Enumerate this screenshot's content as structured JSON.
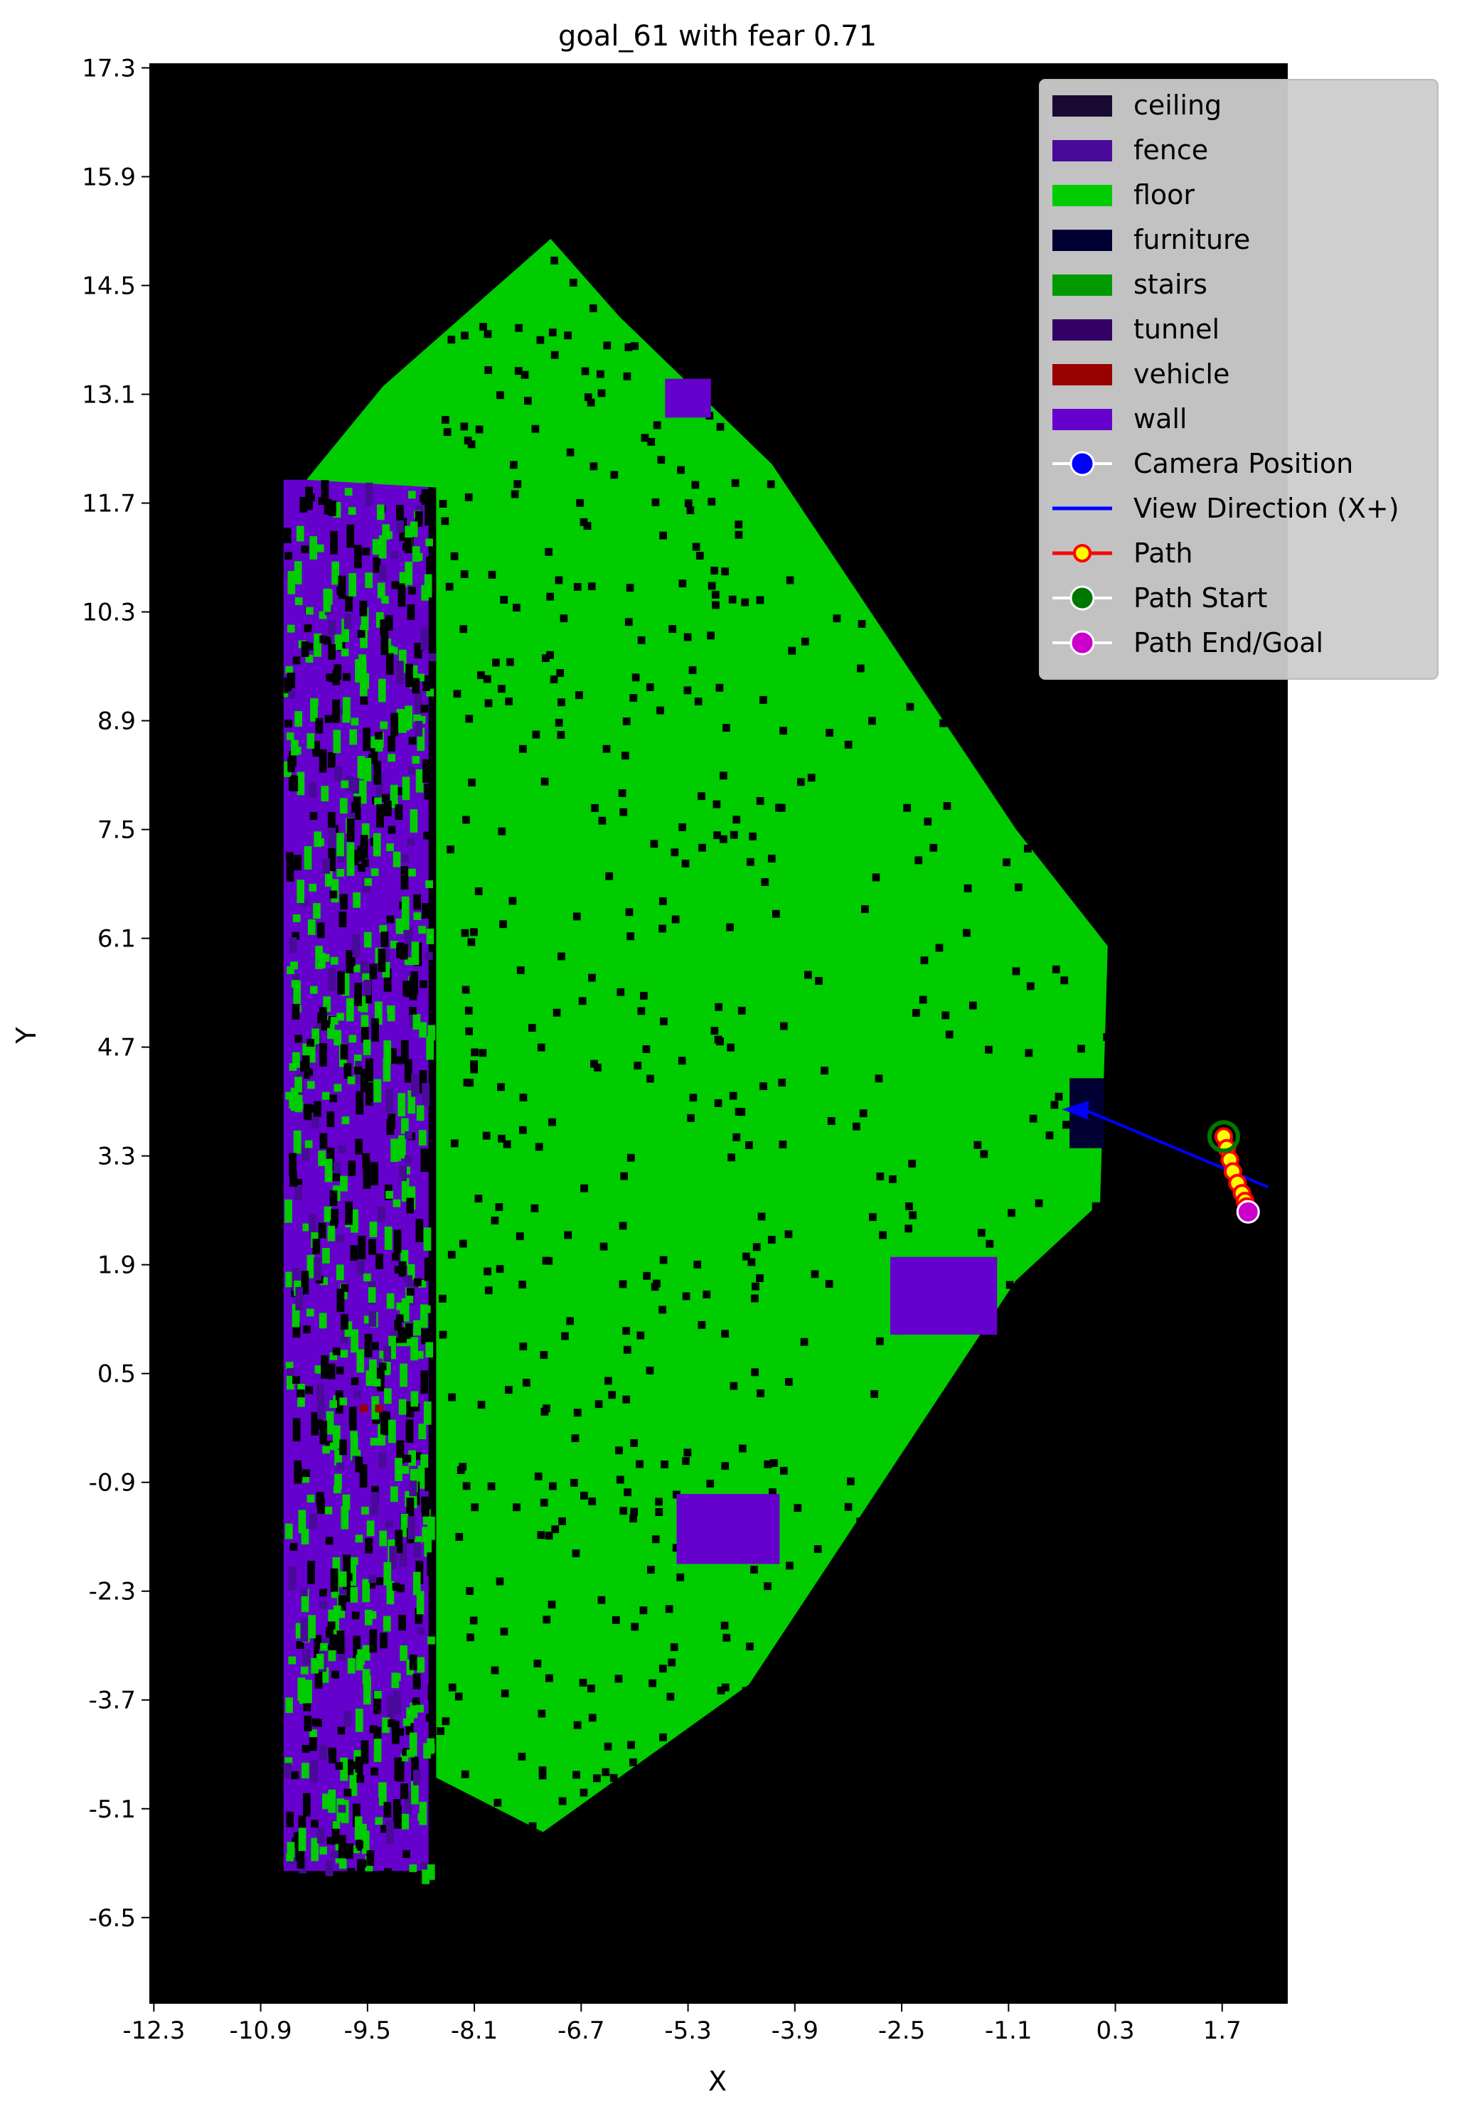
{
  "title": "goal_61 with fear 0.71",
  "chart_data": {
    "type": "heatmap",
    "title": "goal_61 with fear 0.71",
    "xlabel": "X",
    "ylabel": "Y",
    "xlim": [
      -12.35,
      2.55
    ],
    "ylim": [
      -7.6,
      17.35
    ],
    "x_ticks": [
      "-12.3",
      "-10.9",
      "-9.5",
      "-8.1",
      "-6.7",
      "-5.3",
      "-3.9",
      "-2.5",
      "-1.1",
      "0.3",
      "1.7"
    ],
    "y_ticks": [
      "17.3",
      "15.9",
      "14.5",
      "13.1",
      "11.7",
      "10.3",
      "8.9",
      "7.5",
      "6.1",
      "4.7",
      "3.3",
      "1.9",
      "0.5",
      "-0.9",
      "-2.3",
      "-3.7",
      "-5.1",
      "-6.5"
    ],
    "background_color": "#000000",
    "classes": [
      {
        "name": "ceiling",
        "color": "#1a0a33"
      },
      {
        "name": "fence",
        "color": "#4a0a99"
      },
      {
        "name": "floor",
        "color": "#00cc00"
      },
      {
        "name": "furniture",
        "color": "#000033"
      },
      {
        "name": "stairs",
        "color": "#009900"
      },
      {
        "name": "tunnel",
        "color": "#330066"
      },
      {
        "name": "vehicle",
        "color": "#990000"
      },
      {
        "name": "wall",
        "color": "#6600cc"
      }
    ],
    "floor_region": [
      [
        -8.6,
        11.9
      ],
      [
        -8.6,
        -4.7
      ],
      [
        -7.2,
        -5.4
      ],
      [
        -4.5,
        -3.5
      ],
      [
        -1.0,
        1.7
      ],
      [
        0.1,
        2.7
      ],
      [
        0.2,
        6.0
      ],
      [
        -1.0,
        7.5
      ],
      [
        -4.2,
        12.2
      ],
      [
        -6.2,
        14.1
      ],
      [
        -7.1,
        15.1
      ],
      [
        -9.3,
        13.2
      ],
      [
        -10.3,
        12.0
      ]
    ],
    "wall_strip": {
      "x": [
        -10.6,
        -8.7
      ],
      "y": [
        -5.9,
        12.0
      ]
    },
    "wall_patches": [
      {
        "x": [
          -2.65,
          -1.25
        ],
        "y": [
          1.0,
          2.0
        ]
      },
      {
        "x": [
          -5.45,
          -4.1
        ],
        "y": [
          -1.95,
          -1.05
        ]
      },
      {
        "x": [
          -5.6,
          -5.0
        ],
        "y": [
          12.8,
          13.3
        ]
      }
    ],
    "furniture_patches": [
      {
        "x": [
          -0.3,
          0.15
        ],
        "y": [
          3.4,
          4.3
        ]
      }
    ],
    "vehicle_points": [
      [
        -9.6,
        0.1
      ],
      [
        -9.4,
        0.1
      ]
    ],
    "camera_position": [
      2.3,
      2.9
    ],
    "view_direction_end": [
      -0.4,
      3.9
    ],
    "path": {
      "x": [
        1.72,
        1.76,
        1.8,
        1.84,
        1.9,
        1.96,
        2.0,
        2.02,
        2.04
      ],
      "y": [
        3.55,
        3.4,
        3.25,
        3.1,
        2.95,
        2.82,
        2.72,
        2.65,
        2.58
      ]
    },
    "path_start": [
      1.72,
      3.55
    ],
    "path_end": [
      2.04,
      2.58
    ],
    "legend_placement": "top-right",
    "legend": [
      {
        "label": "ceiling",
        "kind": "patch",
        "color": "#1a0a33"
      },
      {
        "label": "fence",
        "kind": "patch",
        "color": "#4a0a99"
      },
      {
        "label": "floor",
        "kind": "patch",
        "color": "#00cc00"
      },
      {
        "label": "furniture",
        "kind": "patch",
        "color": "#000033"
      },
      {
        "label": "stairs",
        "kind": "patch",
        "color": "#009900"
      },
      {
        "label": "tunnel",
        "kind": "patch",
        "color": "#330066"
      },
      {
        "label": "vehicle",
        "kind": "patch",
        "color": "#990000"
      },
      {
        "label": "wall",
        "kind": "patch",
        "color": "#6600cc"
      },
      {
        "label": "Camera Position",
        "kind": "marker",
        "color": "#0000ff",
        "edge": "#ffffff"
      },
      {
        "label": "View Direction (X+)",
        "kind": "line",
        "color": "#0000ff"
      },
      {
        "label": "Path",
        "kind": "line-marker",
        "color": "#ff0000",
        "face": "#ffff00"
      },
      {
        "label": "Path Start",
        "kind": "marker",
        "color": "#007700",
        "edge": "#ffffff"
      },
      {
        "label": "Path End/Goal",
        "kind": "marker",
        "color": "#cc00cc",
        "edge": "#ffffff"
      }
    ]
  }
}
